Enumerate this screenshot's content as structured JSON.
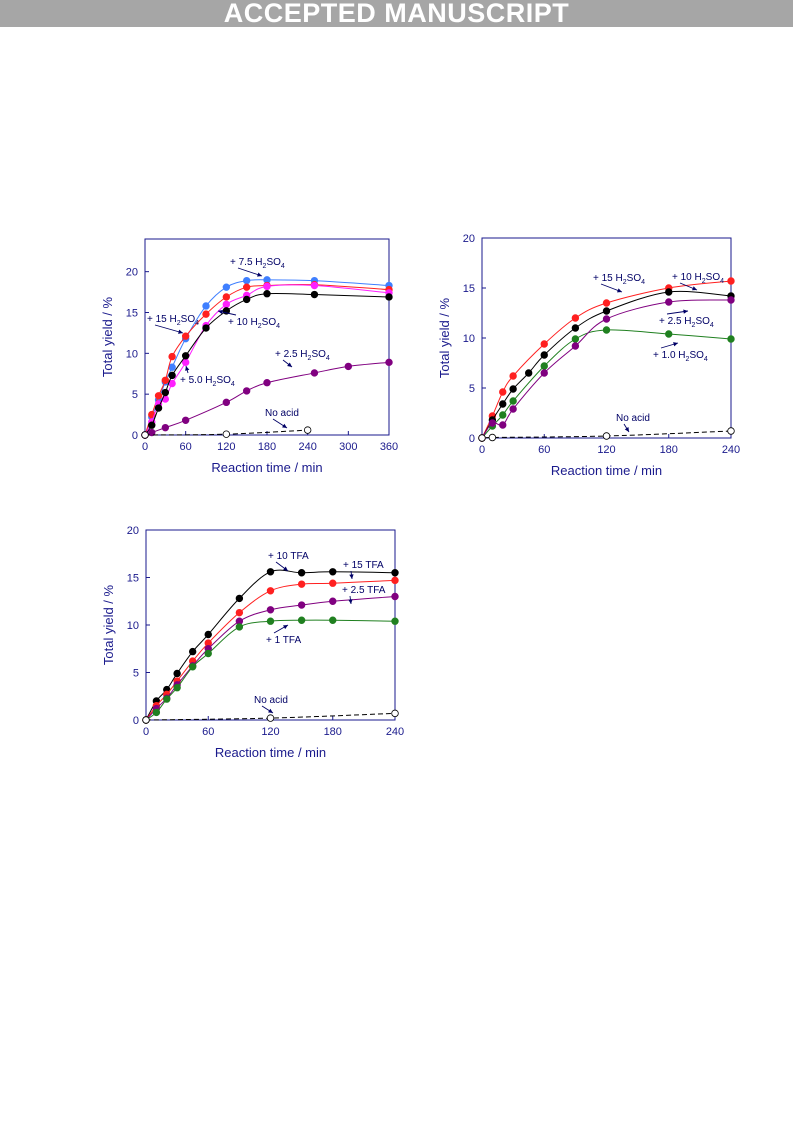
{
  "header": {
    "banner": "ACCEPTED MANUSCRIPT"
  },
  "chart_data": [
    {
      "type": "scatter",
      "xlabel": "Reaction time / min",
      "ylabel": "Total yield / %",
      "xlim": [
        0,
        360
      ],
      "ylim": [
        0,
        24
      ],
      "xticks": [
        0,
        60,
        120,
        180,
        240,
        300,
        360
      ],
      "yticks": [
        0,
        5,
        10,
        15,
        20
      ],
      "series": [
        {
          "name": "+ 7.5 H2SO4",
          "color": "#3f7fff",
          "x": [
            0,
            10,
            20,
            30,
            40,
            60,
            90,
            120,
            150,
            180,
            250,
            360
          ],
          "y": [
            0,
            2.2,
            4.3,
            6.5,
            8.3,
            11.8,
            15.8,
            18.1,
            18.9,
            19.0,
            18.9,
            18.3
          ]
        },
        {
          "name": "+ 15 H2SO4",
          "color": "#ff2020",
          "x": [
            0,
            10,
            20,
            30,
            40,
            60,
            90,
            120,
            150,
            180,
            250,
            360
          ],
          "y": [
            0,
            2.5,
            4.8,
            6.7,
            9.6,
            12.1,
            14.8,
            16.9,
            18.1,
            18.3,
            18.4,
            17.8
          ]
        },
        {
          "name": "+ 5.0 H2SO4",
          "color": "#ff20ff",
          "x": [
            0,
            10,
            20,
            30,
            40,
            60,
            90,
            120,
            150,
            180,
            250,
            360
          ],
          "y": [
            0,
            1.6,
            3.8,
            4.4,
            6.3,
            8.9,
            13.4,
            16.0,
            17.1,
            18.2,
            18.3,
            17.4
          ]
        },
        {
          "name": "+ 10 H2SO4",
          "color": "#000000",
          "x": [
            0,
            10,
            20,
            30,
            40,
            60,
            90,
            120,
            150,
            180,
            250,
            360
          ],
          "y": [
            0,
            1.2,
            3.3,
            5.2,
            7.3,
            9.7,
            13.1,
            15.2,
            16.6,
            17.3,
            17.2,
            16.9
          ]
        },
        {
          "name": "+ 2.5 H2SO4",
          "color": "#800080",
          "x": [
            0,
            10,
            30,
            60,
            120,
            150,
            180,
            250,
            300,
            360
          ],
          "y": [
            0,
            0.3,
            0.9,
            1.8,
            4.0,
            5.4,
            6.4,
            7.6,
            8.4,
            8.9
          ]
        },
        {
          "name": "No acid",
          "color": "#000000",
          "hollow": true,
          "dashed": true,
          "x": [
            0,
            120,
            240
          ],
          "y": [
            0,
            0.1,
            0.6
          ]
        }
      ],
      "annotations": [
        {
          "text": "+ 7.5 H",
          "sub": "2",
          "rest": "SO",
          "sub2": "4"
        },
        {
          "text": "+ 15 H",
          "sub": "2",
          "rest": "SO",
          "sub2": "4"
        },
        {
          "text": "+ 10 H",
          "sub": "2",
          "rest": "SO",
          "sub2": "4"
        },
        {
          "text": "+ 5.0 H",
          "sub": "2",
          "rest": "SO",
          "sub2": "4"
        },
        {
          "text": "+ 2.5 H",
          "sub": "2",
          "rest": "SO",
          "sub2": "4"
        },
        {
          "text": "No acid"
        }
      ]
    },
    {
      "type": "scatter",
      "xlabel": "Reaction time / min",
      "ylabel": "Total yield / %",
      "xlim": [
        0,
        240
      ],
      "ylim": [
        0,
        20
      ],
      "xticks": [
        0,
        60,
        120,
        180,
        240
      ],
      "yticks": [
        0,
        5,
        10,
        15,
        20
      ],
      "series": [
        {
          "name": "+ 15 H2SO4",
          "color": "#ff2020",
          "x": [
            0,
            10,
            20,
            30,
            60,
            90,
            120,
            180,
            240
          ],
          "y": [
            0,
            2.2,
            4.6,
            6.2,
            9.4,
            12.0,
            13.5,
            15.0,
            15.7
          ]
        },
        {
          "name": "+ 10 H2SO4",
          "color": "#000000",
          "x": [
            0,
            10,
            20,
            30,
            45,
            60,
            90,
            120,
            180,
            240
          ],
          "y": [
            0,
            1.8,
            3.4,
            4.9,
            6.5,
            8.3,
            11.0,
            12.7,
            14.6,
            14.2
          ]
        },
        {
          "name": "+ 1.0 H2SO4",
          "color": "#208020",
          "x": [
            0,
            10,
            20,
            30,
            60,
            90,
            120,
            180,
            240
          ],
          "y": [
            0,
            1.2,
            2.3,
            3.7,
            7.2,
            9.9,
            10.8,
            10.4,
            9.9
          ]
        },
        {
          "name": "+ 2.5 H2SO4",
          "color": "#800080",
          "x": [
            0,
            10,
            20,
            30,
            60,
            90,
            120,
            180,
            240
          ],
          "y": [
            0,
            1.5,
            1.3,
            2.9,
            6.5,
            9.2,
            11.9,
            13.6,
            13.8
          ]
        },
        {
          "name": "No acid",
          "color": "#000000",
          "hollow": true,
          "dashed": true,
          "x": [
            0,
            10,
            120,
            240
          ],
          "y": [
            0,
            0.05,
            0.2,
            0.7
          ]
        }
      ],
      "annotations": [
        {
          "text": "+ 15 H",
          "sub": "2",
          "rest": "SO",
          "sub2": "4"
        },
        {
          "text": "+ 10 H",
          "sub": "2",
          "rest": "SO",
          "sub2": "4"
        },
        {
          "text": "+ 2.5 H",
          "sub": "2",
          "rest": "SO",
          "sub2": "4"
        },
        {
          "text": "+ 1.0 H",
          "sub": "2",
          "rest": "SO",
          "sub2": "4"
        },
        {
          "text": "No acid"
        }
      ]
    },
    {
      "type": "scatter",
      "xlabel": "Reaction time / min",
      "ylabel": "Total yield / %",
      "xlim": [
        0,
        240
      ],
      "ylim": [
        0,
        20
      ],
      "xticks": [
        0,
        60,
        120,
        180,
        240
      ],
      "yticks": [
        0,
        5,
        10,
        15,
        20
      ],
      "series": [
        {
          "name": "+ 10 TFA",
          "color": "#000000",
          "x": [
            0,
            10,
            20,
            30,
            45,
            60,
            90,
            120,
            150,
            180,
            240
          ],
          "y": [
            0,
            2.0,
            3.2,
            4.9,
            7.2,
            9.0,
            12.8,
            15.6,
            15.5,
            15.6,
            15.5
          ]
        },
        {
          "name": "+ 15 TFA",
          "color": "#ff2020",
          "x": [
            0,
            10,
            20,
            30,
            45,
            60,
            90,
            120,
            150,
            180,
            240
          ],
          "y": [
            0,
            1.5,
            2.7,
            4.1,
            6.2,
            8.1,
            11.3,
            13.6,
            14.3,
            14.4,
            14.7
          ]
        },
        {
          "name": "+ 2.5 TFA",
          "color": "#800080",
          "x": [
            0,
            10,
            20,
            30,
            45,
            60,
            90,
            120,
            150,
            180,
            240
          ],
          "y": [
            0,
            1.2,
            2.3,
            3.7,
            5.7,
            7.5,
            10.4,
            11.6,
            12.1,
            12.5,
            13.0
          ]
        },
        {
          "name": "+ 1 TFA",
          "color": "#208020",
          "x": [
            0,
            10,
            20,
            30,
            45,
            60,
            90,
            120,
            150,
            180,
            240
          ],
          "y": [
            0,
            0.8,
            2.2,
            3.4,
            5.6,
            7.0,
            9.8,
            10.4,
            10.5,
            10.5,
            10.4
          ]
        },
        {
          "name": "No acid",
          "color": "#000000",
          "hollow": true,
          "dashed": true,
          "x": [
            0,
            120,
            240
          ],
          "y": [
            0,
            0.2,
            0.7
          ]
        }
      ],
      "annotations": [
        {
          "text": "+ 10 TFA"
        },
        {
          "text": "+ 15 TFA"
        },
        {
          "text": "+ 2.5 TFA"
        },
        {
          "text": "+ 1 TFA"
        },
        {
          "text": "No acid"
        }
      ]
    }
  ]
}
